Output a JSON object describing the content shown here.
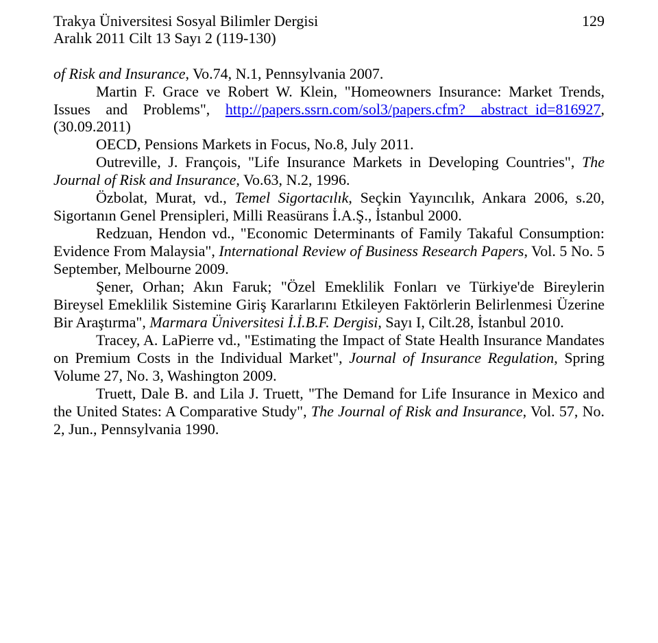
{
  "colors": {
    "background": "#ffffff",
    "text": "#000000",
    "link": "#0000ee"
  },
  "typography": {
    "font_family": "Times New Roman",
    "body_fontsize_pt": 17,
    "line_height": 1.18
  },
  "page_number": "129",
  "header": {
    "line1": "Trakya Üniversitesi Sosyal Bilimler Dergisi",
    "line2": "Aralık 2011 Cilt 13 Sayı 2 (119-130)"
  },
  "refs": {
    "r1_a": "of Risk and Insurance",
    "r1_b": ", Vo.74, N.1, Pennsylvania 2007.",
    "r2_a": "Martin F. Grace ve Robert W. Klein, \"Homeowners Insurance: Market Trends, Issues and Problems\", ",
    "r2_link": "http://papers.ssrn.com/sol3/papers.cfm? abstract_id=816927",
    "r2_b": ", (30.09.2011)",
    "r3": "OECD, Pensions Markets in Focus, No.8, July 2011.",
    "r4_a": "Outreville, J. François, \"Life Insurance Markets in Developing Countries\", ",
    "r4_i": "The Journal of Risk and Insurance",
    "r4_b": ", Vo.63, N.2, 1996.",
    "r5_a": "Özbolat, Murat, vd., ",
    "r5_i": "Temel Sigortacılık",
    "r5_b": ", Seçkin Yayıncılık, Ankara 2006, s.20, Sigortanın Genel Prensipleri, Milli Reasürans İ.A.Ş., İstanbul 2000.",
    "r6_a": "Redzuan, Hendon vd., \"Economic Determinants of Family Takaful Consumption: Evidence From Malaysia\", ",
    "r6_i": "International Review of Business Research Papers",
    "r6_b": ", Vol. 5 No. 5 September, Melbourne 2009.",
    "r7_a": "Şener, Orhan; Akın Faruk; \"Özel Emeklilik Fonları ve Türkiye'de Bireylerin Bireysel Emeklilik Sistemine Giriş Kararlarını Etkileyen Faktörlerin Belirlenmesi Üzerine Bir Araştırma\", ",
    "r7_i": "Marmara Üniversitesi İ.İ.B.F. Dergisi",
    "r7_b": ", Sayı I, Cilt.28, İstanbul 2010.",
    "r8_a": "Tracey, A. LaPierre vd., \"Estimating the Impact of State Health Insurance Mandates on Premium Costs in the Individual Market\", ",
    "r8_i": "Journal of Insurance Regulation",
    "r8_b": ", Spring Volume 27, No. 3, Washington 2009.",
    "r9_a": "Truett, Dale B. and Lila J. Truett, \"The Demand for Life Insurance in Mexico and the United States: A Comparative Study\", ",
    "r9_i": "The Journal of Risk and Insurance",
    "r9_b": ", Vol. 57, No. 2, Jun., Pennsylvania 1990."
  }
}
